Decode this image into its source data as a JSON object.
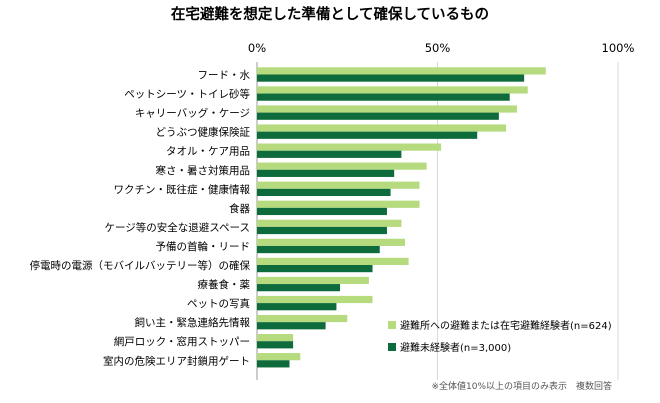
{
  "chart_data": {
    "type": "bar",
    "orientation": "horizontal",
    "title": "在宅避難を想定した準備として確保しているもの",
    "xlim": [
      0,
      100
    ],
    "x_ticks": [
      "0%",
      "50%",
      "100%"
    ],
    "grid": true,
    "legend_position": "bottom-right",
    "categories": [
      "フード・水",
      "ペットシーツ・トイレ砂等",
      "キャリーバッグ・ケージ",
      "どうぶつ健康保険証",
      "タオル・ケア用品",
      "寒さ・暑さ対策用品",
      "ワクチン・既往症・健康情報",
      "食器",
      "ケージ等の安全な退避スペース",
      "予備の首輪・リード",
      "停電時の電源（モバイルバッテリー等）の確保",
      "療養食・薬",
      "ペットの写真",
      "飼い主・緊急連絡先情報",
      "網戸ロック・窓用ストッパー",
      "室内の危険エリア封鎖用ゲート"
    ],
    "series": [
      {
        "name": "避難所への避難または在宅避難経験者(n=624)",
        "color": "#b5db7e",
        "values": [
          80,
          75,
          72,
          69,
          51,
          47,
          45,
          45,
          40,
          41,
          42,
          31,
          32,
          25,
          10,
          12
        ]
      },
      {
        "name": "避難未経験者(n=3,000)",
        "color": "#0e6b3b",
        "values": [
          74,
          70,
          67,
          61,
          40,
          38,
          37,
          36,
          36,
          34,
          32,
          23,
          22,
          19,
          10,
          9
        ]
      }
    ],
    "note": "※全体値10%以上の項目のみ表示　複数回答"
  }
}
